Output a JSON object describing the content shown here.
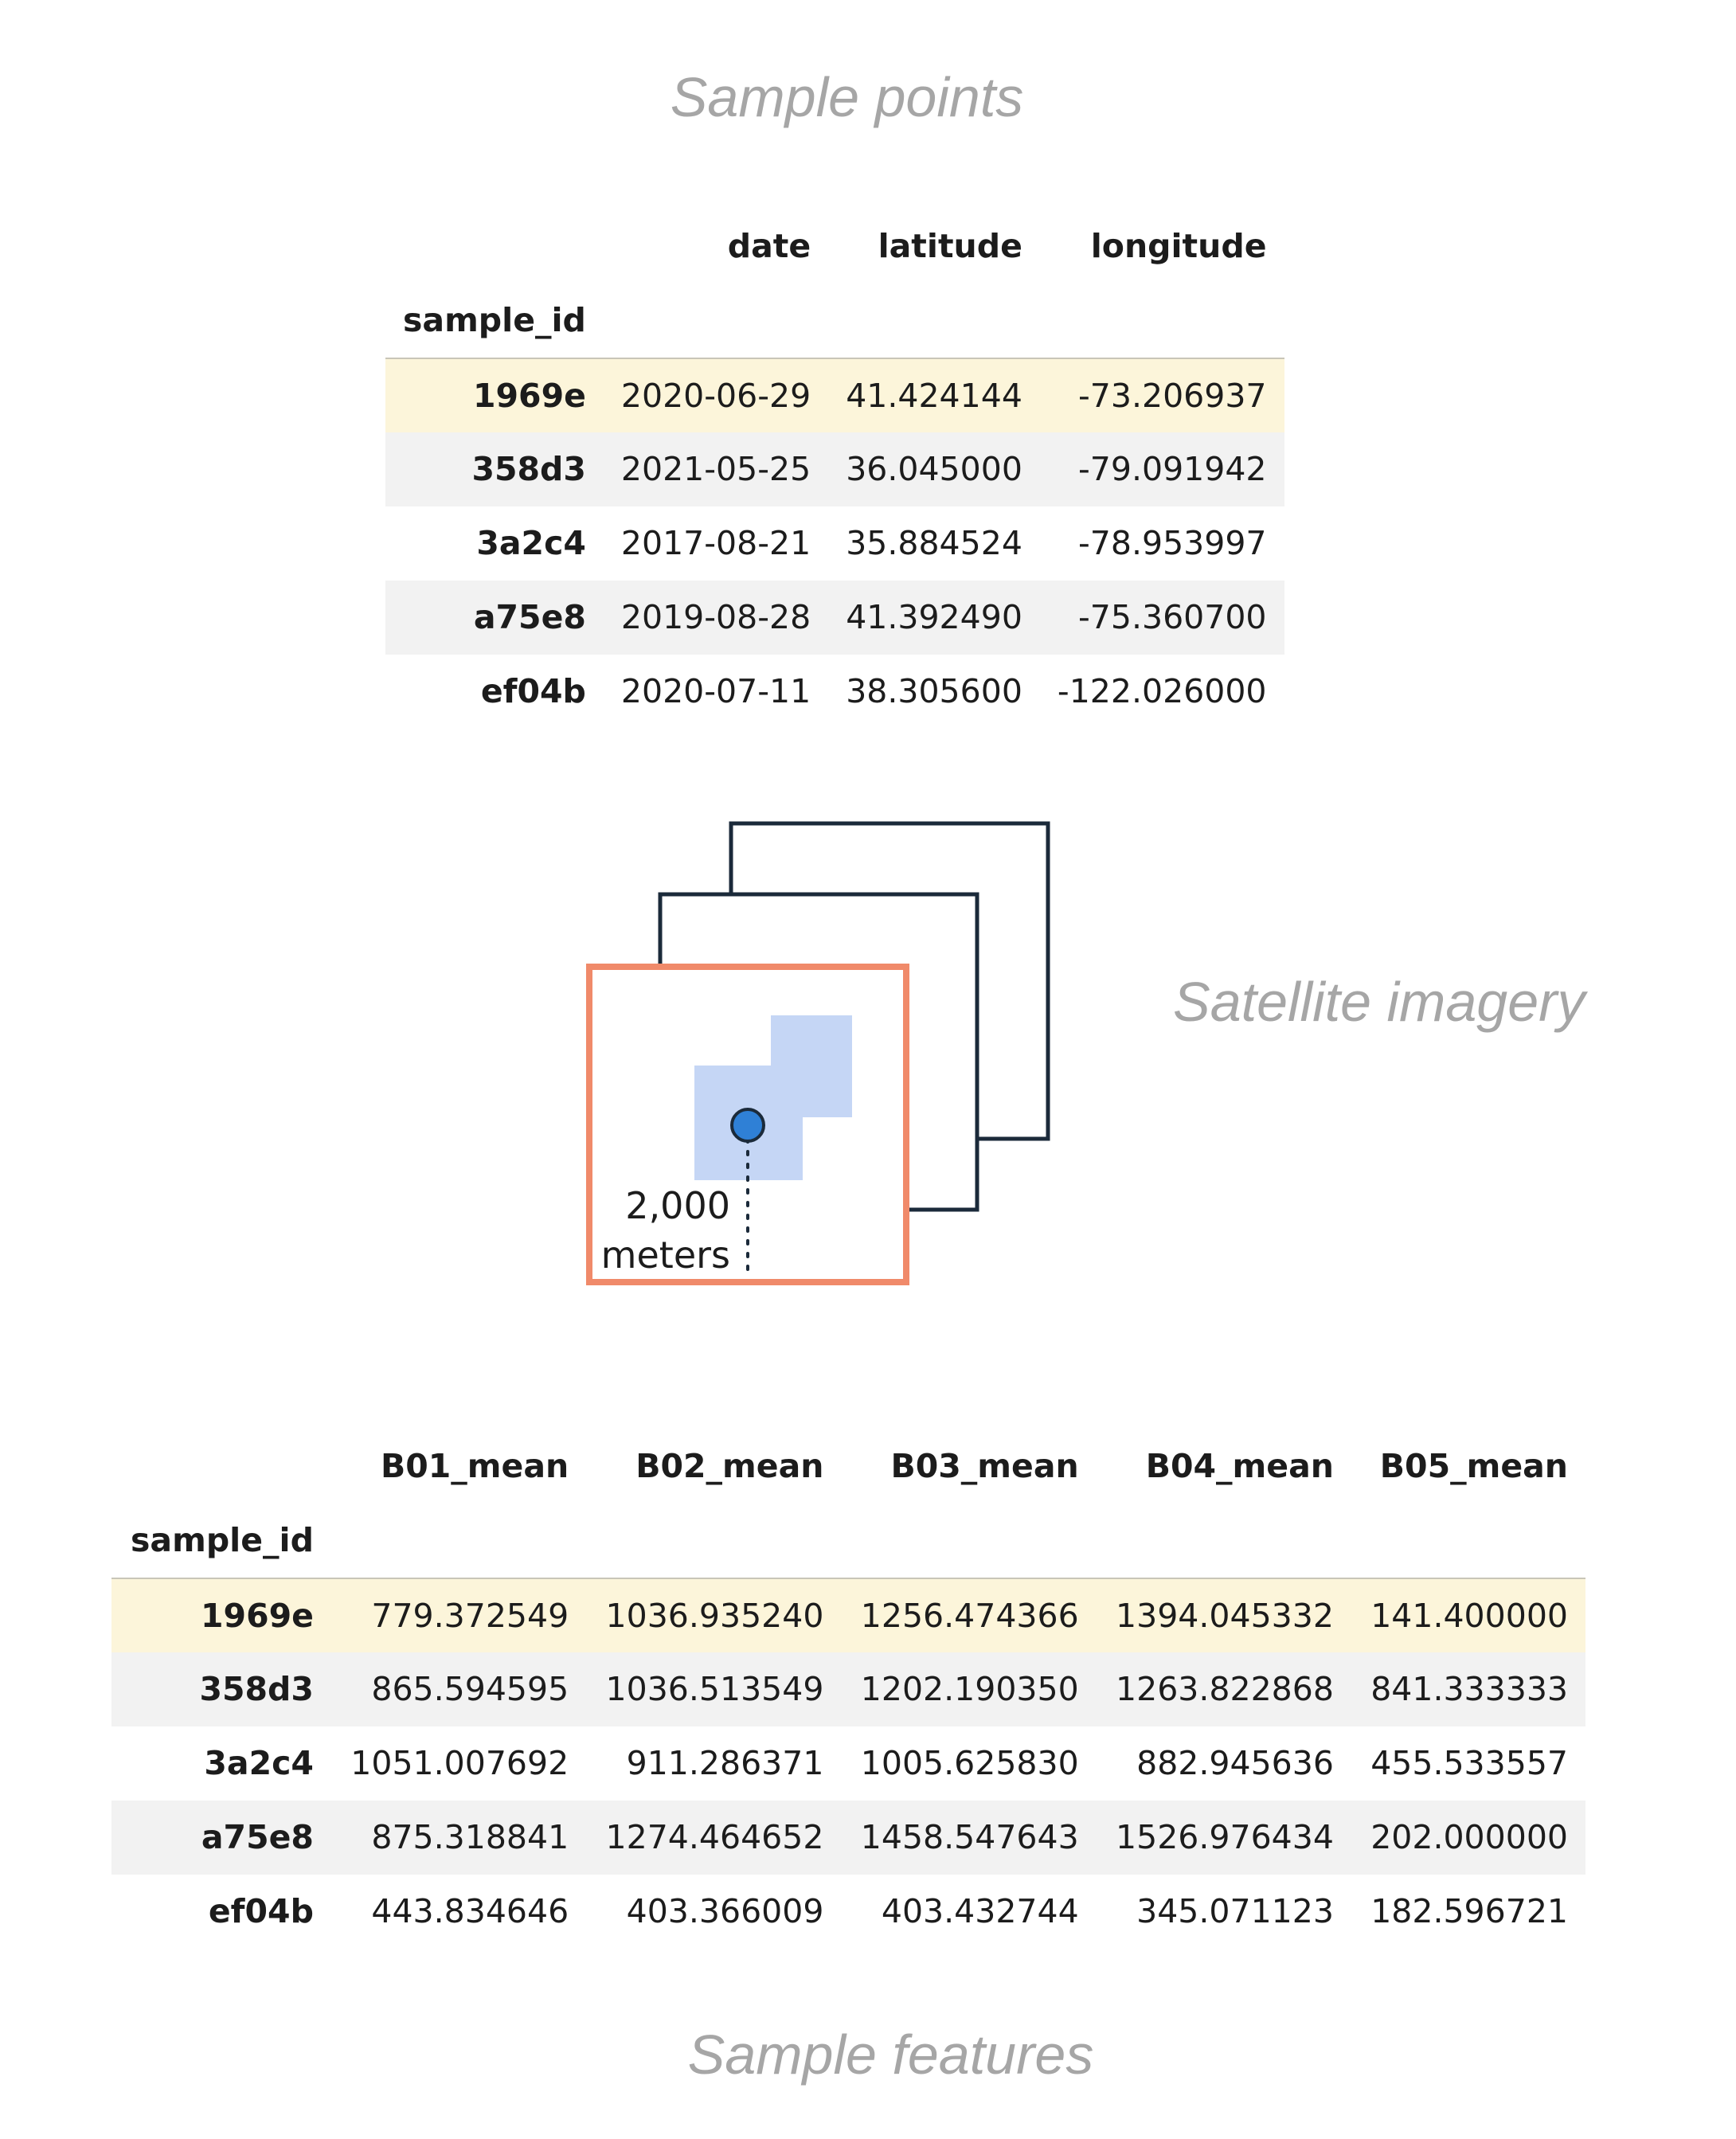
{
  "sample_points": {
    "title": "Sample points",
    "index_name": "sample_id",
    "columns": [
      "date",
      "latitude",
      "longitude"
    ],
    "rows": [
      {
        "id": "1969e",
        "values": [
          "2020-06-29",
          "41.424144",
          "-73.206937"
        ]
      },
      {
        "id": "358d3",
        "values": [
          "2021-05-25",
          "36.045000",
          "-79.091942"
        ]
      },
      {
        "id": "3a2c4",
        "values": [
          "2017-08-21",
          "35.884524",
          "-78.953997"
        ]
      },
      {
        "id": "a75e8",
        "values": [
          "2019-08-28",
          "41.392490",
          "-75.360700"
        ]
      },
      {
        "id": "ef04b",
        "values": [
          "2020-07-11",
          "38.305600",
          "-122.026000"
        ]
      }
    ]
  },
  "satellite_imagery": {
    "title": "Satellite imagery",
    "distance_value": "2,000",
    "distance_unit": "meters",
    "colors": {
      "frame_back": "#1b2a3a",
      "frame_front": "#f08a6a",
      "pixel_fill": "#c5d6f5",
      "point_fill": "#2f80d6",
      "point_stroke": "#1b2a3a"
    }
  },
  "sample_features": {
    "title": "Sample features",
    "index_name": "sample_id",
    "columns": [
      "B01_mean",
      "B02_mean",
      "B03_mean",
      "B04_mean",
      "B05_mean"
    ],
    "rows": [
      {
        "id": "1969e",
        "values": [
          "779.372549",
          "1036.935240",
          "1256.474366",
          "1394.045332",
          "141.400000"
        ]
      },
      {
        "id": "358d3",
        "values": [
          "865.594595",
          "1036.513549",
          "1202.190350",
          "1263.822868",
          "841.333333"
        ]
      },
      {
        "id": "3a2c4",
        "values": [
          "1051.007692",
          "911.286371",
          "1005.625830",
          "882.945636",
          "455.533557"
        ]
      },
      {
        "id": "a75e8",
        "values": [
          "875.318841",
          "1274.464652",
          "1458.547643",
          "1526.976434",
          "202.000000"
        ]
      },
      {
        "id": "ef04b",
        "values": [
          "443.834646",
          "403.366009",
          "403.432744",
          "345.071123",
          "182.596721"
        ]
      }
    ]
  }
}
